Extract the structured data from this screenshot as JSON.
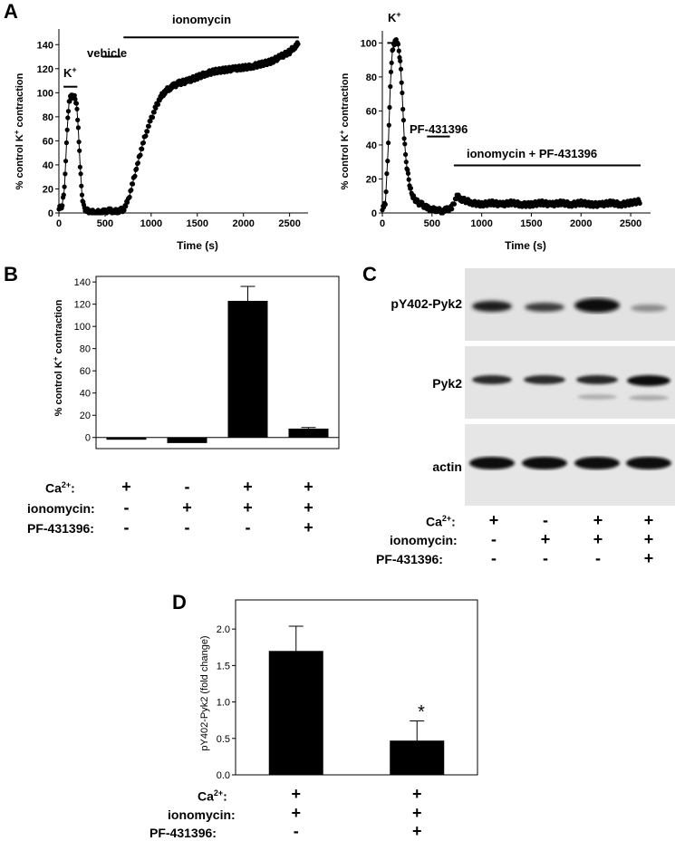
{
  "panels": {
    "A": "A",
    "B": "B",
    "C": "C",
    "D": "D"
  },
  "panel_a_left": {
    "ylabel_main": "% control K",
    "ylabel_sup": "+",
    "ylabel_tail": " contraction",
    "xlabel": "Time (s)",
    "annotation_k_main": "K",
    "annotation_k_sup": "+",
    "annotation_vehicle": "vehicle",
    "annotation_ionomycin": "ionomycin",
    "x_ticks": [
      "0",
      "500",
      "1000",
      "1500",
      "2000",
      "2500"
    ],
    "y_ticks": [
      "0",
      "20",
      "40",
      "60",
      "80",
      "100",
      "120",
      "140"
    ]
  },
  "panel_a_right": {
    "ylabel_main": "% control K",
    "ylabel_sup": "+",
    "ylabel_tail": " contraction",
    "xlabel": "Time (s)",
    "annotation_k_main": "K",
    "annotation_k_sup": "+",
    "annotation_pf": "PF-431396",
    "annotation_iono_pf": "ionomycin + PF-431396",
    "x_ticks": [
      "0",
      "500",
      "1000",
      "1500",
      "2000",
      "2500"
    ],
    "y_ticks": [
      "0",
      "20",
      "40",
      "60",
      "80",
      "100"
    ]
  },
  "panel_b": {
    "ylabel_main": "% control K",
    "ylabel_sup": "+",
    "ylabel_tail": " contraction",
    "y_ticks": [
      "0",
      "20",
      "40",
      "60",
      "80",
      "100",
      "120",
      "140"
    ],
    "conditions": {
      "ca_main": "Ca",
      "ca_sup": "2+",
      "ca_tail": ":",
      "ionomycin": "ionomycin:",
      "pf": "PF-431396:"
    },
    "ca": [
      "+",
      "-",
      "+",
      "+"
    ],
    "iono": [
      "-",
      "+",
      "+",
      "+"
    ],
    "pf_vals": [
      "-",
      "-",
      "-",
      "+"
    ]
  },
  "panel_c": {
    "labels": [
      "pY402-Pyk2",
      "Pyk2",
      "actin"
    ],
    "conditions": {
      "ca_main": "Ca",
      "ca_sup": "2+",
      "ca_tail": ":",
      "ionomycin": "ionomycin:",
      "pf": "PF-431396:"
    },
    "ca": [
      "+",
      "-",
      "+",
      "+"
    ],
    "iono": [
      "-",
      "+",
      "+",
      "+"
    ],
    "pf_vals": [
      "-",
      "-",
      "-",
      "+"
    ]
  },
  "panel_d": {
    "ylabel": "pY402-Pyk2 (fold change)",
    "y_ticks": [
      "0.0",
      "0.5",
      "1.0",
      "1.5",
      "2.0"
    ],
    "star": "*",
    "conditions": {
      "ca_main": "Ca",
      "ca_sup": "2+",
      "ca_tail": ":",
      "ionomycin": "ionomycin:",
      "pf": "PF-431396:"
    },
    "ca": [
      "+",
      "+"
    ],
    "iono": [
      "+",
      "+"
    ],
    "pf_vals": [
      "-",
      "+"
    ]
  },
  "chart_data": [
    {
      "id": "a_left",
      "type": "scatter",
      "xlim": [
        0,
        2700
      ],
      "ylim": [
        0,
        150
      ],
      "events": [
        {
          "label": "K+",
          "x0": 50,
          "x1": 200,
          "y": 105
        },
        {
          "label": "vehicle",
          "x0": 470,
          "x1": 670,
          "y": 130
        },
        {
          "label": "ionomycin",
          "x0": 700,
          "x1": 2600,
          "y": 146
        }
      ],
      "series": [
        {
          "x": [
            0,
            30,
            60,
            90,
            110,
            130,
            150,
            170,
            190,
            210,
            230,
            250,
            270,
            300,
            350,
            400,
            450,
            500,
            550,
            600,
            650,
            700,
            750,
            800,
            850,
            900,
            950,
            1000,
            1050,
            1100,
            1150,
            1200,
            1250,
            1300,
            1400,
            1500,
            1600,
            1700,
            1800,
            1900,
            2000,
            2100,
            2200,
            2300,
            2400,
            2500,
            2550,
            2600
          ],
          "y": [
            5,
            4,
            20,
            70,
            92,
            97,
            98,
            96,
            92,
            70,
            40,
            15,
            5,
            2,
            1,
            0,
            1,
            1,
            2,
            1,
            2,
            3,
            10,
            25,
            40,
            55,
            68,
            78,
            88,
            96,
            101,
            104,
            106,
            108,
            110,
            113,
            116,
            118,
            119,
            120,
            121,
            122,
            124,
            126,
            130,
            134,
            138,
            141
          ]
        }
      ]
    },
    {
      "id": "a_right",
      "type": "scatter",
      "xlim": [
        0,
        2700
      ],
      "ylim": [
        0,
        105
      ],
      "events": [
        {
          "label": "K+",
          "x0": 50,
          "x1": 160,
          "y": 100
        },
        {
          "label": "PF-431396",
          "x0": 450,
          "x1": 680,
          "y": 45
        },
        {
          "label": "ionomycin + PF-431396",
          "x0": 720,
          "x1": 2600,
          "y": 28
        }
      ],
      "series": [
        {
          "x": [
            0,
            30,
            60,
            80,
            100,
            120,
            140,
            160,
            180,
            200,
            220,
            240,
            260,
            280,
            300,
            330,
            360,
            400,
            450,
            500,
            550,
            600,
            650,
            700,
            750,
            800,
            900,
            1000,
            1100,
            1200,
            1300,
            1400,
            1500,
            1600,
            1700,
            1800,
            1900,
            2000,
            2100,
            2200,
            2300,
            2400,
            2500,
            2600
          ],
          "y": [
            3,
            5,
            40,
            75,
            95,
            100,
            102,
            98,
            90,
            70,
            45,
            30,
            22,
            15,
            10,
            8,
            6,
            5,
            3,
            2,
            2,
            1,
            2,
            3,
            10,
            8,
            6,
            5,
            6,
            5,
            6,
            5,
            5,
            6,
            5,
            6,
            5,
            6,
            5,
            5,
            6,
            5,
            6,
            7
          ]
        }
      ]
    },
    {
      "id": "b",
      "type": "bar",
      "categories": [
        "1",
        "2",
        "3",
        "4"
      ],
      "values": [
        -2,
        -5,
        123,
        8
      ],
      "errors": [
        0,
        0,
        13,
        1
      ],
      "ylim": [
        -10,
        145
      ]
    },
    {
      "id": "d",
      "type": "bar",
      "categories": [
        "1",
        "2"
      ],
      "values": [
        1.7,
        0.47
      ],
      "errors": [
        0.34,
        0.27
      ],
      "ylim": [
        0,
        2.4
      ]
    }
  ]
}
